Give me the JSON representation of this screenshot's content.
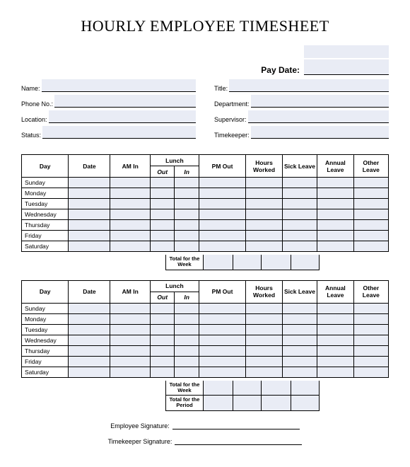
{
  "title": "HOURLY EMPLOYEE TIMESHEET",
  "paydate_label": "Pay Date:",
  "left_fields": [
    {
      "label": "Name:"
    },
    {
      "label": "Phone No.:"
    },
    {
      "label": "Location:"
    },
    {
      "label": "Status:"
    }
  ],
  "right_fields": [
    {
      "label": "Title:"
    },
    {
      "label": "Department:"
    },
    {
      "label": "Supervisor:"
    },
    {
      "label": "Timekeeper:"
    }
  ],
  "columns": {
    "day": "Day",
    "date": "Date",
    "am_in": "AM In",
    "lunch": "Lunch",
    "lunch_out": "Out",
    "lunch_in": "In",
    "pm_out": "PM Out",
    "hours_worked": "Hours Worked",
    "sick_leave": "Sick Leave",
    "annual_leave": "Annual Leave",
    "other_leave": "Other Leave"
  },
  "days": [
    "Sunday",
    "Monday",
    "Tuesday",
    "Wednesday",
    "Thursday",
    "Friday",
    "Saturday"
  ],
  "totals": {
    "week": "Total for the Week",
    "period": "Total for the Period"
  },
  "signatures": {
    "employee": "Employee Signature:",
    "timekeeper": "Timekeeper Signature:"
  },
  "style": {
    "fill_color": "#e9ecf5",
    "border_color": "#000000",
    "title_fontsize": 22,
    "label_fontsize": 9,
    "cell_fontsize": 8.5
  }
}
